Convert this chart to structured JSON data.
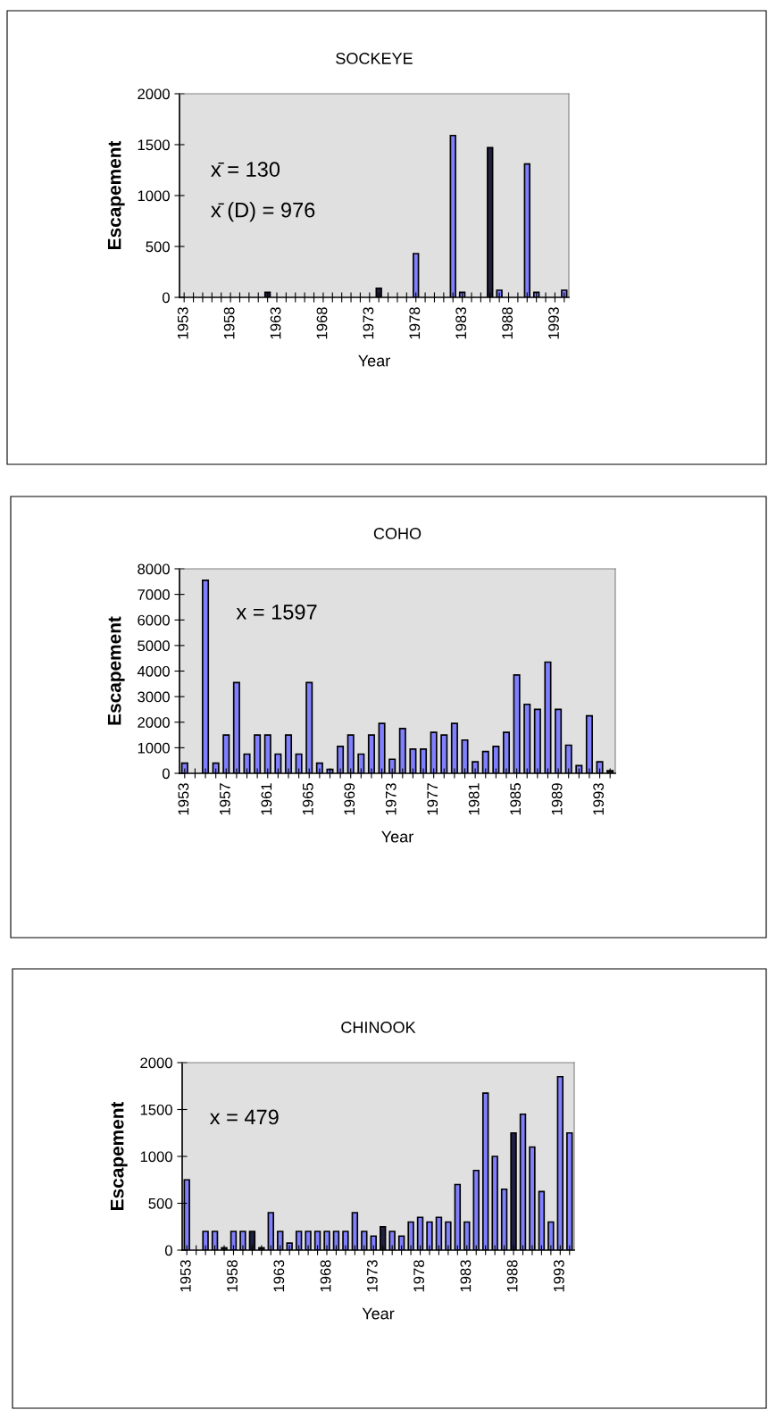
{
  "chart_data": [
    {
      "type": "bar",
      "title": "SOCKEYE",
      "xlabel": "Year",
      "ylabel": "Escapement",
      "annotations": [
        "x̄ = 130",
        "x̄ (D) = 976"
      ],
      "categories": [
        "1953",
        null,
        null,
        null,
        null,
        "1958",
        null,
        null,
        null,
        null,
        "1963",
        null,
        null,
        null,
        null,
        "1968",
        null,
        null,
        null,
        null,
        "1973",
        null,
        null,
        null,
        null,
        "1978",
        null,
        null,
        null,
        null,
        "1983",
        null,
        null,
        null,
        null,
        "1988",
        null,
        null,
        null,
        null,
        "1993",
        null
      ],
      "values": [
        null,
        null,
        null,
        null,
        null,
        null,
        null,
        null,
        null,
        50,
        null,
        null,
        null,
        null,
        null,
        null,
        null,
        null,
        null,
        null,
        null,
        90,
        null,
        null,
        null,
        430,
        null,
        null,
        null,
        1590,
        50,
        null,
        null,
        1470,
        70,
        null,
        null,
        1310,
        50,
        null,
        null,
        70
      ],
      "colors": [
        "#8080ff",
        "#8080ff",
        "#8080ff",
        "#8080ff",
        "#8080ff",
        "#8080ff",
        "#8080ff",
        "#8080ff",
        "#8080ff",
        "#202040",
        "#8080ff",
        "#8080ff",
        "#8080ff",
        "#8080ff",
        "#8080ff",
        "#8080ff",
        "#8080ff",
        "#8080ff",
        "#8080ff",
        "#8080ff",
        "#8080ff",
        "#202040",
        "#8080ff",
        "#8080ff",
        "#8080ff",
        "#8080ff",
        "#8080ff",
        "#8080ff",
        "#8080ff",
        "#8080ff",
        "#8080ff",
        "#8080ff",
        "#8080ff",
        "#202040",
        "#8080ff",
        "#8080ff",
        "#8080ff",
        "#8080ff",
        "#8080ff",
        "#8080ff",
        "#8080ff",
        "#8080ff"
      ],
      "ylim": [
        0,
        2000
      ],
      "yticks": [
        0,
        500,
        1000,
        1500,
        2000
      ],
      "grid": false,
      "legend": false
    },
    {
      "type": "bar",
      "title": "COHO",
      "xlabel": "Year",
      "ylabel": "Escapement",
      "annotations": [
        "x = 1597"
      ],
      "categories": [
        "1953",
        null,
        null,
        null,
        "1957",
        null,
        null,
        null,
        "1961",
        null,
        null,
        null,
        "1965",
        null,
        null,
        null,
        "1969",
        null,
        null,
        null,
        "1973",
        null,
        null,
        null,
        "1977",
        null,
        null,
        null,
        "1981",
        null,
        null,
        null,
        "1985",
        null,
        null,
        null,
        "1989",
        null,
        null,
        null,
        "1993",
        null
      ],
      "values": [
        400,
        null,
        7550,
        400,
        1500,
        3550,
        750,
        1500,
        1500,
        750,
        1500,
        750,
        3550,
        400,
        150,
        1050,
        1500,
        750,
        1500,
        1950,
        550,
        1750,
        950,
        950,
        1600,
        1500,
        1950,
        1300,
        450,
        850,
        1050,
        1600,
        3850,
        2700,
        2500,
        4350,
        2500,
        1100,
        300,
        2250,
        450,
        100
      ],
      "colors": [
        "#8080ff",
        "#8080ff",
        "#8080ff",
        "#8080ff",
        "#8080ff",
        "#8080ff",
        "#8080ff",
        "#8080ff",
        "#8080ff",
        "#8080ff",
        "#8080ff",
        "#8080ff",
        "#8080ff",
        "#8080ff",
        "#8080ff",
        "#8080ff",
        "#8080ff",
        "#8080ff",
        "#8080ff",
        "#8080ff",
        "#8080ff",
        "#8080ff",
        "#8080ff",
        "#8080ff",
        "#8080ff",
        "#8080ff",
        "#8080ff",
        "#8080ff",
        "#8080ff",
        "#8080ff",
        "#8080ff",
        "#8080ff",
        "#8080ff",
        "#8080ff",
        "#8080ff",
        "#8080ff",
        "#8080ff",
        "#8080ff",
        "#8080ff",
        "#8080ff",
        "#8080ff",
        "#202040"
      ],
      "ylim": [
        0,
        8000
      ],
      "yticks": [
        0,
        1000,
        2000,
        3000,
        4000,
        5000,
        6000,
        7000,
        8000
      ],
      "grid": false,
      "legend": false
    },
    {
      "type": "bar",
      "title": "CHINOOK",
      "xlabel": "Year",
      "ylabel": "Escapement",
      "annotations": [
        "x = 479"
      ],
      "categories": [
        "1953",
        null,
        null,
        null,
        null,
        "1958",
        null,
        null,
        null,
        null,
        "1963",
        null,
        null,
        null,
        null,
        "1968",
        null,
        null,
        null,
        null,
        "1973",
        null,
        null,
        null,
        null,
        "1978",
        null,
        null,
        null,
        null,
        "1983",
        null,
        null,
        null,
        null,
        "1988",
        null,
        null,
        null,
        null,
        "1993",
        null
      ],
      "values": [
        750,
        null,
        200,
        200,
        25,
        200,
        200,
        200,
        25,
        400,
        200,
        75,
        200,
        200,
        200,
        200,
        200,
        200,
        400,
        200,
        150,
        250,
        200,
        150,
        300,
        350,
        300,
        350,
        300,
        700,
        300,
        850,
        1675,
        1000,
        650,
        1250,
        1450,
        1100,
        625,
        300,
        1850,
        1250
      ],
      "colors": [
        "#8080ff",
        "#8080ff",
        "#8080ff",
        "#8080ff",
        "#202040",
        "#8080ff",
        "#8080ff",
        "#202040",
        "#202040",
        "#8080ff",
        "#8080ff",
        "#8080ff",
        "#8080ff",
        "#8080ff",
        "#8080ff",
        "#8080ff",
        "#8080ff",
        "#8080ff",
        "#8080ff",
        "#8080ff",
        "#8080ff",
        "#202040",
        "#8080ff",
        "#8080ff",
        "#8080ff",
        "#8080ff",
        "#8080ff",
        "#8080ff",
        "#8080ff",
        "#8080ff",
        "#8080ff",
        "#8080ff",
        "#8080ff",
        "#8080ff",
        "#8080ff",
        "#202040",
        "#8080ff",
        "#8080ff",
        "#8080ff",
        "#8080ff",
        "#8080ff",
        "#8080ff"
      ],
      "ylim": [
        0,
        2000
      ],
      "yticks": [
        0,
        500,
        1000,
        1500,
        2000
      ],
      "grid": false,
      "legend": false
    }
  ]
}
